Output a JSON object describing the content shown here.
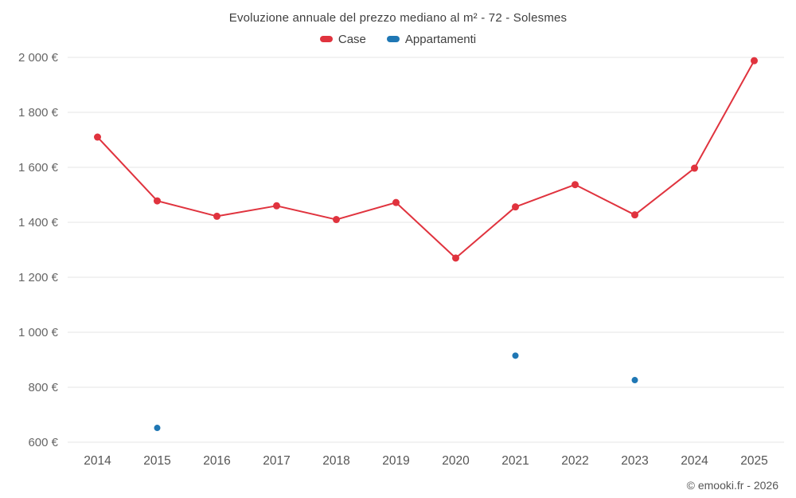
{
  "title": "Evoluzione annuale del prezzo mediano al m² - 72 - Solesmes",
  "footer": "© emooki.fr - 2026",
  "chart_data": {
    "type": "line",
    "title": "Evoluzione annuale del prezzo mediano al m² - 72 - Solesmes",
    "x": [
      2014,
      2015,
      2016,
      2017,
      2018,
      2019,
      2020,
      2021,
      2022,
      2023,
      2024,
      2025
    ],
    "series": [
      {
        "name": "Case",
        "type": "line",
        "color": "#e0333e",
        "values": [
          1710,
          1478,
          1422,
          1460,
          1410,
          1472,
          1270,
          1456,
          1537,
          1427,
          1597,
          1988
        ]
      },
      {
        "name": "Appartamenti",
        "type": "scatter",
        "color": "#1f77b4",
        "values": [
          null,
          652,
          null,
          null,
          null,
          null,
          null,
          915,
          null,
          826,
          null,
          null
        ]
      }
    ],
    "ylim": [
      600,
      2000
    ],
    "ytick_step": 200,
    "ytick_suffix": " €",
    "xlabel": "",
    "ylabel": "",
    "grid": "horizontal",
    "legend_position": "top"
  }
}
